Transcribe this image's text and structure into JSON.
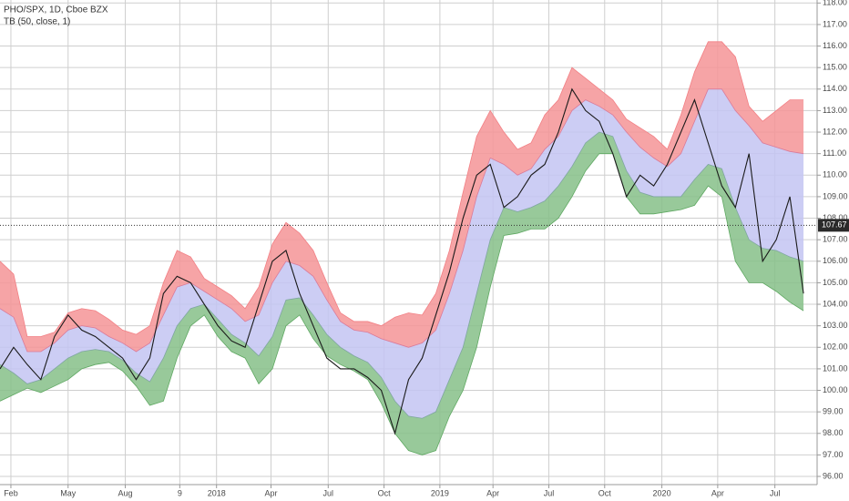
{
  "chart_data": {
    "type": "line",
    "title": "PHO/SPX, 1D, Cboe BZX",
    "subtitle": "TB (50, close, 1)",
    "x": [
      0,
      1,
      2,
      3,
      4,
      5,
      6,
      7,
      8,
      9,
      10,
      11,
      12,
      13,
      14,
      15,
      16,
      17,
      18,
      19,
      20,
      21,
      22,
      23,
      24,
      25,
      26,
      27,
      28,
      29,
      30,
      31,
      32,
      33,
      34,
      35,
      36,
      37,
      38,
      39,
      40,
      41,
      42,
      43,
      44,
      45,
      46,
      47,
      48,
      49,
      50,
      51,
      52,
      53,
      54,
      55,
      56,
      57,
      58,
      59
    ],
    "series": [
      {
        "color": "#f27f84",
        "fill": "#f59497",
        "values": [
          106.0,
          105.4,
          102.5,
          102.5,
          102.7,
          103.6,
          103.8,
          103.7,
          103.3,
          102.8,
          102.6,
          103.0,
          105.0,
          106.5,
          106.2,
          105.2,
          104.8,
          104.4,
          103.8,
          104.8,
          106.8,
          107.8,
          107.3,
          106.5,
          105.0,
          103.6,
          103.2,
          103.2,
          103.0,
          103.4,
          103.6,
          103.5,
          104.5,
          106.5,
          109.2,
          111.8,
          113.0,
          112.0,
          111.2,
          111.5,
          112.8,
          113.5,
          115.0,
          114.5,
          114.0,
          113.5,
          112.6,
          112.2,
          111.8,
          111.2,
          112.8,
          114.8,
          116.2,
          116.2,
          115.5,
          113.2,
          112.5,
          113.0,
          113.5,
          113.5
        ]
      },
      {
        "color": "#d97a9a",
        "fill": "#c3c4f2",
        "values": [
          103.8,
          103.4,
          101.8,
          101.8,
          102.2,
          102.8,
          103.0,
          102.9,
          102.5,
          102.2,
          101.8,
          102.2,
          103.5,
          104.8,
          105.0,
          104.6,
          104.2,
          103.8,
          103.2,
          103.5,
          105.0,
          106.0,
          105.8,
          105.3,
          104.2,
          103.2,
          102.8,
          102.7,
          102.4,
          102.2,
          102.0,
          102.2,
          102.8,
          104.5,
          106.5,
          109.0,
          110.8,
          110.5,
          110.0,
          110.3,
          111.2,
          111.8,
          113.0,
          113.5,
          113.2,
          112.8,
          112.0,
          111.3,
          110.8,
          110.4,
          111.0,
          112.5,
          114.0,
          114.0,
          113.0,
          112.3,
          111.5,
          111.3,
          111.1,
          111.0
        ]
      },
      {
        "color": "#7fa6a0",
        "fill": "#86c088",
        "values": [
          101.2,
          100.8,
          100.3,
          100.5,
          101.0,
          101.5,
          101.8,
          101.9,
          101.8,
          101.4,
          100.8,
          100.4,
          101.5,
          103.0,
          103.8,
          104.0,
          103.3,
          102.6,
          102.2,
          101.6,
          102.5,
          104.2,
          104.3,
          103.5,
          102.6,
          102.0,
          101.6,
          101.3,
          100.6,
          99.5,
          98.8,
          98.7,
          99.0,
          100.5,
          102.0,
          104.5,
          107.0,
          108.5,
          108.3,
          108.5,
          108.8,
          109.5,
          110.4,
          111.5,
          112.0,
          111.8,
          110.2,
          109.2,
          109.0,
          109.0,
          109.0,
          109.8,
          110.5,
          110.3,
          108.5,
          107.0,
          106.6,
          106.5,
          106.2,
          106.0
        ]
      },
      {
        "color": "#5fa862",
        "values": [
          99.5,
          99.8,
          100.1,
          99.9,
          100.2,
          100.5,
          101.0,
          101.2,
          101.3,
          100.9,
          100.2,
          99.3,
          99.5,
          101.5,
          103.0,
          103.5,
          102.5,
          101.8,
          101.5,
          100.3,
          101.0,
          103.0,
          103.5,
          102.4,
          101.6,
          101.2,
          100.9,
          100.5,
          99.4,
          98.0,
          97.2,
          97.0,
          97.2,
          98.8,
          100.0,
          102.0,
          104.8,
          107.2,
          107.3,
          107.5,
          107.5,
          108.0,
          109.0,
          110.2,
          111.0,
          111.0,
          109.0,
          108.2,
          108.2,
          108.3,
          108.4,
          108.6,
          109.5,
          109.0,
          106.0,
          105.0,
          105.0,
          104.6,
          104.1,
          103.7
        ]
      },
      {
        "color": "#1a1a1a",
        "values": [
          101.0,
          102.0,
          101.2,
          100.5,
          102.5,
          103.5,
          102.8,
          102.5,
          102.0,
          101.5,
          100.5,
          101.5,
          104.5,
          105.3,
          105.0,
          104.0,
          103.0,
          102.3,
          102.0,
          104.0,
          106.0,
          106.5,
          104.5,
          103.0,
          101.5,
          101.0,
          101.0,
          100.6,
          100.0,
          98.0,
          100.5,
          101.5,
          103.5,
          105.5,
          108.0,
          110.0,
          110.5,
          108.5,
          109.0,
          110.0,
          110.5,
          112.0,
          114.0,
          113.0,
          112.5,
          111.0,
          109.0,
          110.0,
          109.5,
          110.5,
          112.0,
          113.5,
          111.5,
          109.5,
          108.5,
          111.0,
          106.0,
          107.0,
          109.0,
          104.5
        ]
      }
    ],
    "last_price": 107.67,
    "xlim": [
      0,
      60
    ],
    "xticks": [
      {
        "value": 0.8,
        "label": "Feb"
      },
      {
        "value": 5,
        "label": "May"
      },
      {
        "value": 9.2,
        "label": "Aug"
      },
      {
        "value": 13.2,
        "label": "9"
      },
      {
        "value": 15.9,
        "label": "2018"
      },
      {
        "value": 19.9,
        "label": "Apr"
      },
      {
        "value": 24.1,
        "label": "Jul"
      },
      {
        "value": 28.2,
        "label": "Oct"
      },
      {
        "value": 32.3,
        "label": "2019"
      },
      {
        "value": 36.2,
        "label": "Apr"
      },
      {
        "value": 40.3,
        "label": "Jul"
      },
      {
        "value": 44.4,
        "label": "Oct"
      },
      {
        "value": 48.6,
        "label": "2020"
      },
      {
        "value": 52.7,
        "label": "Apr"
      },
      {
        "value": 56.9,
        "label": "Jul"
      }
    ],
    "ylim": [
      95.62,
      118.14
    ],
    "yticks": [
      {
        "value": 96,
        "label": "96.00"
      },
      {
        "value": 97,
        "label": "97.00"
      },
      {
        "value": 98,
        "label": "98.00"
      },
      {
        "value": 99,
        "label": "99.00"
      },
      {
        "value": 100,
        "label": "100.00"
      },
      {
        "value": 101,
        "label": "101.00"
      },
      {
        "value": 102,
        "label": "102.00"
      },
      {
        "value": 103,
        "label": "103.00"
      },
      {
        "value": 104,
        "label": "104.00"
      },
      {
        "value": 105,
        "label": "105.00"
      },
      {
        "value": 106,
        "label": "106.00"
      },
      {
        "value": 107,
        "label": "107.00"
      },
      {
        "value": 108,
        "label": "108.00"
      },
      {
        "value": 109,
        "label": "109.00"
      },
      {
        "value": 110,
        "label": "110.00"
      },
      {
        "value": 111,
        "label": "111.00"
      },
      {
        "value": 112,
        "label": "112.00"
      },
      {
        "value": 113,
        "label": "113.00"
      },
      {
        "value": 114,
        "label": "114.00"
      },
      {
        "value": 115,
        "label": "115.00"
      },
      {
        "value": 116,
        "label": "116.00"
      },
      {
        "value": 117,
        "label": "117.00"
      },
      {
        "value": 118,
        "label": "118.00"
      }
    ],
    "grid": true
  }
}
